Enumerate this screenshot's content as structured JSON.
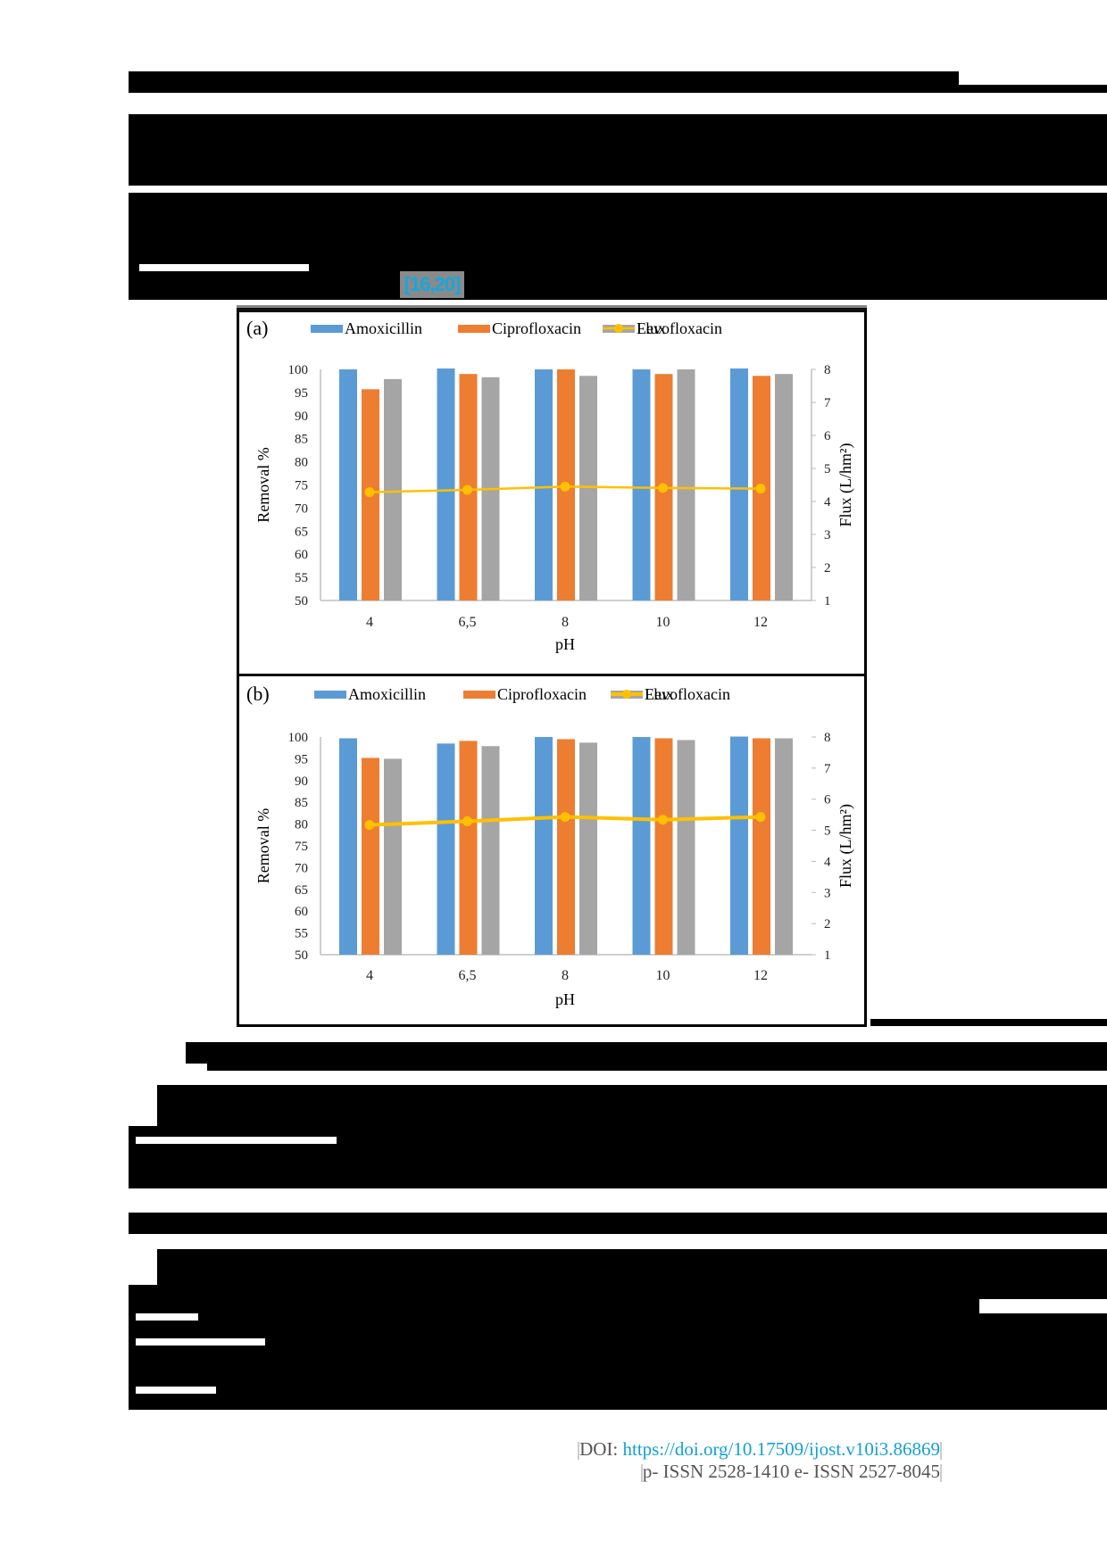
{
  "document": {
    "citation": "[16,20]",
    "footer": {
      "doi_label": "DOI: ",
      "doi_link": "https://doi.org/10.17509/ijost.v10i3.86869",
      "issn": "p- ISSN 2528-1410 e- ISSN 2527-8045"
    },
    "colors": {
      "amoxicillin": "#5b9bd5",
      "ciprofloxacin": "#ed7d31",
      "levofloxacin": "#a5a5a5",
      "flux": "#ffc000",
      "citation_text": "#13a8e0"
    }
  },
  "chart_data": [
    {
      "type": "bar",
      "panel_label": "(a)",
      "title": "",
      "categories": [
        "4",
        "6,5",
        "8",
        "10",
        "12"
      ],
      "xlabel": "pH",
      "ylabel": "Removal %",
      "ylim": [
        50,
        100
      ],
      "yticks": [
        50,
        55,
        60,
        65,
        70,
        75,
        80,
        85,
        90,
        95,
        100
      ],
      "y2label": "Flux (L/hm²)",
      "y2lim": [
        1,
        8
      ],
      "y2ticks": [
        1,
        2,
        3,
        4,
        5,
        6,
        7,
        8
      ],
      "legend": [
        "Amoxicillin",
        "Ciprofloxacin",
        "Levofloxacin",
        "Flux"
      ],
      "legend_position": "top",
      "grid": false,
      "series": [
        {
          "name": "Amoxicillin",
          "type": "bar",
          "axis": "left",
          "values": [
            100.0,
            100.2,
            100.0,
            100.0,
            100.2
          ]
        },
        {
          "name": "Ciprofloxacin",
          "type": "bar",
          "axis": "left",
          "values": [
            95.7,
            99.0,
            100.0,
            99.0,
            98.6
          ]
        },
        {
          "name": "Levofloxacin",
          "type": "bar",
          "axis": "left",
          "values": [
            97.9,
            98.3,
            98.6,
            100.0,
            99.0
          ]
        },
        {
          "name": "Flux",
          "type": "line",
          "axis": "right",
          "values": [
            4.28,
            4.35,
            4.45,
            4.41,
            4.39
          ]
        }
      ]
    },
    {
      "type": "bar",
      "panel_label": "(b)",
      "title": "",
      "categories": [
        "4",
        "6,5",
        "8",
        "10",
        "12"
      ],
      "xlabel": "pH",
      "ylabel": "Removal %",
      "ylim": [
        50,
        100
      ],
      "yticks": [
        50,
        55,
        60,
        65,
        70,
        75,
        80,
        85,
        90,
        95,
        100
      ],
      "y2label": "Flux (L/hm²)",
      "y2lim": [
        1,
        8
      ],
      "y2ticks": [
        1,
        2,
        3,
        4,
        5,
        6,
        7,
        8
      ],
      "legend": [
        "Amoxicillin",
        "Ciprofloxacin",
        "Levofloxacin",
        "Flux"
      ],
      "legend_position": "top",
      "grid": false,
      "series": [
        {
          "name": "Amoxicillin",
          "type": "bar",
          "axis": "left",
          "values": [
            99.7,
            98.5,
            100.0,
            100.0,
            100.1
          ]
        },
        {
          "name": "Ciprofloxacin",
          "type": "bar",
          "axis": "left",
          "values": [
            95.2,
            99.1,
            99.5,
            99.7,
            99.7
          ]
        },
        {
          "name": "Levofloxacin",
          "type": "bar",
          "axis": "left",
          "values": [
            95.0,
            97.9,
            98.7,
            99.3,
            99.7
          ]
        },
        {
          "name": "Flux",
          "type": "line",
          "axis": "right",
          "values": [
            5.17,
            5.29,
            5.43,
            5.34,
            5.43
          ]
        }
      ]
    }
  ]
}
